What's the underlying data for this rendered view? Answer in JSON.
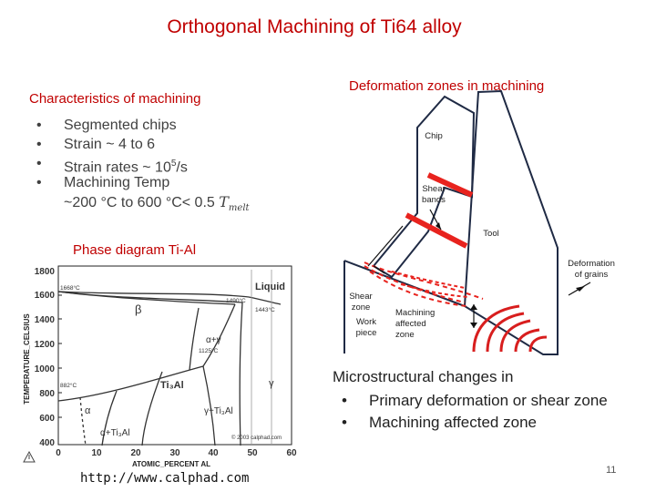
{
  "slide": {
    "title": "Orthogonal Machining of Ti64 alloy",
    "page_number": "11",
    "colors": {
      "title": "#c00000",
      "accent": "#e8231e",
      "dark_text": "#404040"
    }
  },
  "characteristics": {
    "heading": "Characteristics of machining",
    "bullets": [
      "Segmented chips",
      "Strain ~ 4 to 6",
      "Strain rates ~ 10",
      "Machining Temp"
    ],
    "strain_rate_exponent": "5",
    "strain_rate_unit": "/s",
    "temp_range": "~200 °C to 600  °C< 0.5 ",
    "temp_symbol": "T",
    "temp_subscript": "melt"
  },
  "phase_diagram": {
    "heading": "Phase diagram Ti-Al",
    "ylabel": "TEMPERATURE_CELSIUS",
    "xlabel": "ATOMIC_PERCENT AL",
    "x_ticks": [
      "0",
      "10",
      "20",
      "30",
      "40",
      "50",
      "60"
    ],
    "y_ticks": [
      "1800",
      "1600",
      "1400",
      "1200",
      "1000",
      "800",
      "600",
      "400"
    ],
    "region_labels": [
      "Liquid",
      "β",
      "α",
      "α+γ",
      "γ",
      "γ+Ti₃Al",
      "α+Ti₃Al",
      "Ti₃Al"
    ],
    "temp_notes": [
      "1668°C",
      "1490°C",
      "1443°C",
      "1125°C",
      "882°C"
    ],
    "copyright": "© 2003 calphad.com",
    "source_url": "http://www.calphad.com"
  },
  "deformation": {
    "heading": "Deformation zones in machining",
    "labels": {
      "chip": "Chip",
      "shear_bands": "Shear bands",
      "tool": "Tool",
      "deformation_grains": "Deformation of grains",
      "shear_zone": "Shear zone",
      "work_piece": "Work piece",
      "machining_affected": "Machining affected zone"
    }
  },
  "microstructure": {
    "heading": "Microstructural changes in",
    "items": [
      "Primary deformation or shear zone",
      "Machining affected zone"
    ]
  }
}
